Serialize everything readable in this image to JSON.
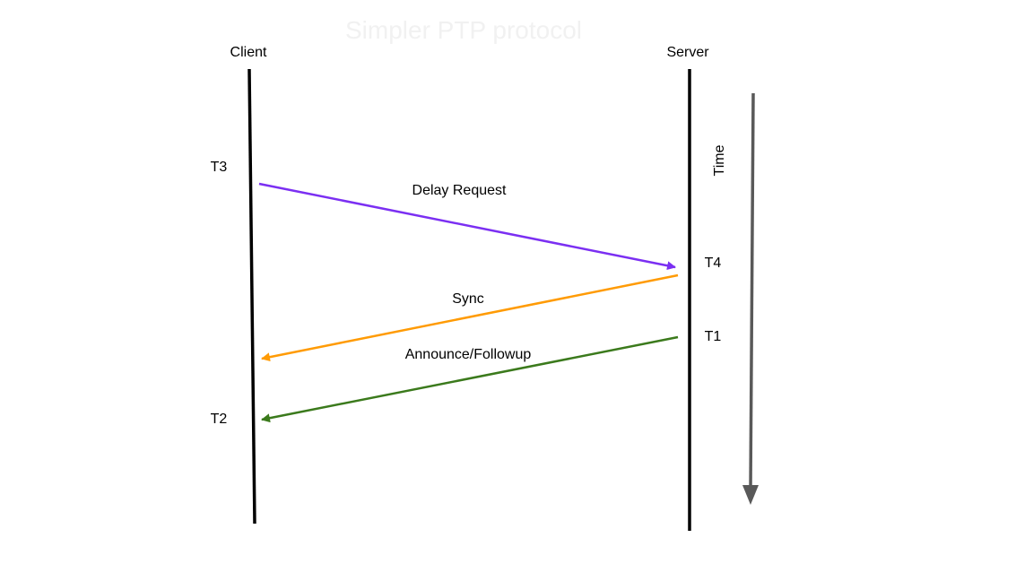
{
  "title": "Simpler PTP protocol",
  "title_color": "#f1f1f1",
  "participants": {
    "client": "Client",
    "server": "Server"
  },
  "timestamps": {
    "t1": "T1",
    "t2": "T2",
    "t3": "T3",
    "t4": "T4"
  },
  "time_axis_label": "Time",
  "messages": [
    {
      "label": "Delay Request",
      "from": "Client",
      "to": "Server",
      "color": "#7b2ff2"
    },
    {
      "label": "Sync",
      "from": "Server",
      "to": "Client",
      "color": "#ff9b05"
    },
    {
      "label": "Announce/Followup",
      "from": "Server",
      "to": "Client",
      "color": "#3b7a1c"
    }
  ],
  "colors": {
    "lifeline": "#000000",
    "time_arrow": "#595959"
  }
}
